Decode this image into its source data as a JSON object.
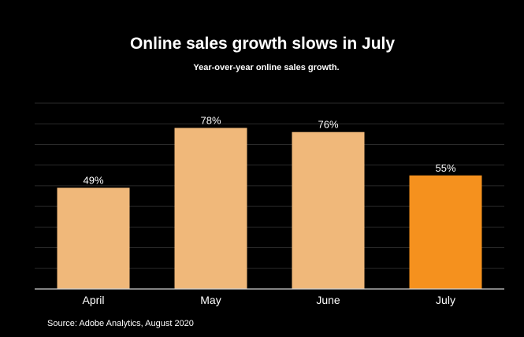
{
  "chart_data": {
    "type": "bar",
    "title": "Online sales growth slows in July",
    "subtitle": "Year-over-year online sales growth.",
    "categories": [
      "April",
      "May",
      "June",
      "July"
    ],
    "values": [
      49,
      78,
      76,
      55
    ],
    "value_labels": [
      "49%",
      "78%",
      "76%",
      "55%"
    ],
    "unit": "%",
    "ylim": [
      0,
      90
    ],
    "grid": true,
    "xlabel": "",
    "ylabel": "",
    "colors": [
      "#F0B87A",
      "#F0B87A",
      "#F0B87A",
      "#F5911E"
    ],
    "highlight_color": "#F5911E",
    "base_color": "#F0B87A",
    "source": "Source: Adobe Analytics, August 2020"
  }
}
